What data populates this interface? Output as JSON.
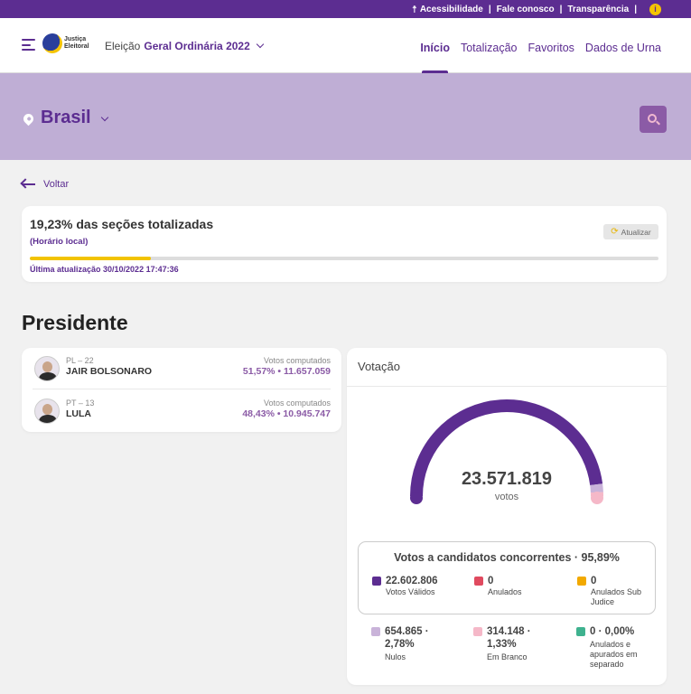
{
  "topbar": {
    "accessibility": "Acessibilidade",
    "contact": "Fale conosco",
    "transparency": "Transparência",
    "separator": "|",
    "info_glyph": "i"
  },
  "header": {
    "logo_text": "Justiça Eleitoral",
    "election_prefix": "Eleição",
    "election_name": "Geral Ordinária 2022",
    "nav": [
      "Início",
      "Totalização",
      "Favoritos",
      "Dados de Urna"
    ],
    "active_tab": "Início"
  },
  "hero": {
    "region": "Brasil",
    "search_icon": "search-icon"
  },
  "back": {
    "label": "Voltar"
  },
  "progress": {
    "title": "19,23% das seções totalizadas",
    "subtitle": "(Horário local)",
    "refresh_label": "Atualizar",
    "updated": "Última atualização 30/10/2022 17:47:36",
    "fraction": 0.1923
  },
  "section_title": "Presidente",
  "candidates": [
    {
      "party": "PL – 22",
      "name": "JAIR BOLSONARO",
      "votes_label": "Votos computados",
      "votes": "51,57% • 11.657.059"
    },
    {
      "party": "PT – 13",
      "name": "LULA",
      "votes_label": "Votos computados",
      "votes": "48,43% • 10.945.747"
    }
  ],
  "voting": {
    "title": "Votação",
    "total": "23.571.819",
    "total_label": "votos",
    "valid_box_title": "Votos a candidatos concorrentes · 95,89%",
    "stats_inner": [
      {
        "value": "22.602.806",
        "label": "Votos Válidos",
        "color": "#5c2d91"
      },
      {
        "value": "0",
        "label": "Anulados",
        "color": "#e04a5f"
      },
      {
        "value": "0",
        "label": "Anulados Sub Judice",
        "color": "#f2a900"
      }
    ],
    "stats_outer": [
      {
        "value": "654.865 · 2,78%",
        "label": "Nulos",
        "color": "#c9b3d9"
      },
      {
        "value": "314.148 · 1,33%",
        "label": "Em Branco",
        "color": "#f5b8c8"
      },
      {
        "value": "0 · 0,00%",
        "label": "Anulados e apurados em separado",
        "color": "#3fb28f"
      }
    ],
    "gauge_fractions": {
      "valid": 0.9589,
      "null": 0.0278,
      "blank": 0.0133
    },
    "colors": {
      "valid": "#5c2d91",
      "null": "#c9b3d9",
      "blank": "#f5b8c8"
    }
  }
}
